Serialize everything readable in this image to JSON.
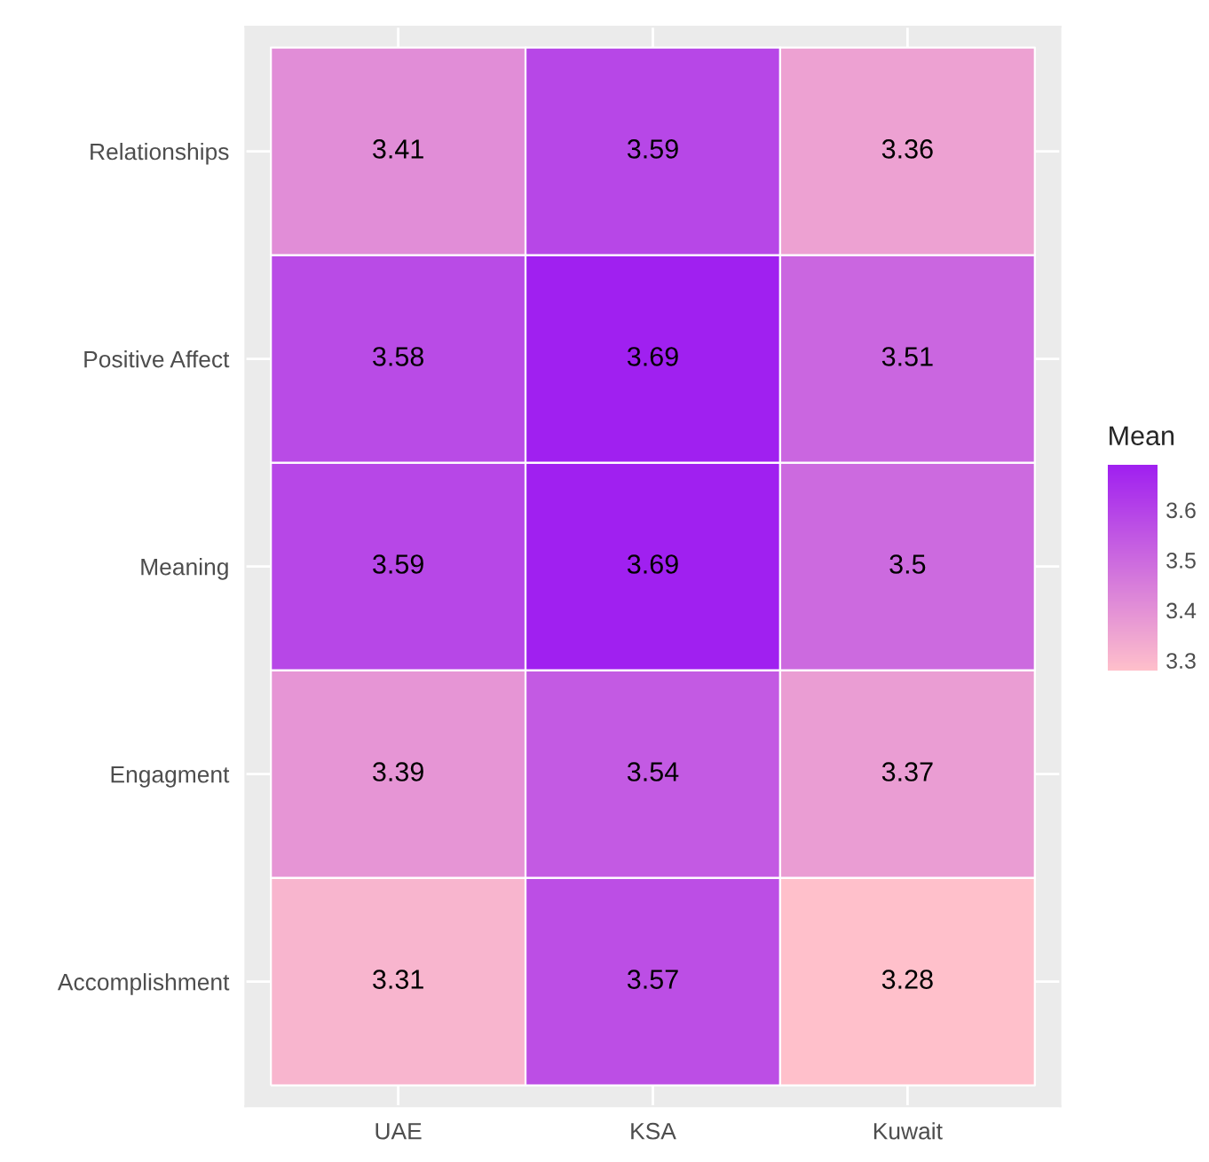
{
  "chart_data": {
    "type": "heatmap",
    "categories": [
      "UAE",
      "KSA",
      "Kuwait"
    ],
    "y_categories": [
      "Relationships",
      "Positive Affect",
      "Meaning",
      "Engagment",
      "Accomplishment"
    ],
    "cells": [
      [
        3.41,
        3.59,
        3.36
      ],
      [
        3.58,
        3.69,
        3.51
      ],
      [
        3.59,
        3.69,
        3.5
      ],
      [
        3.39,
        3.54,
        3.37
      ],
      [
        3.31,
        3.57,
        3.28
      ]
    ],
    "clabel": "Mean",
    "clim": [
      3.28,
      3.69
    ],
    "cticks": [
      3.3,
      3.4,
      3.5,
      3.6
    ],
    "colors": [
      "#ffc0cb",
      "#a020f0"
    ],
    "data_labels": true,
    "grid": true
  }
}
